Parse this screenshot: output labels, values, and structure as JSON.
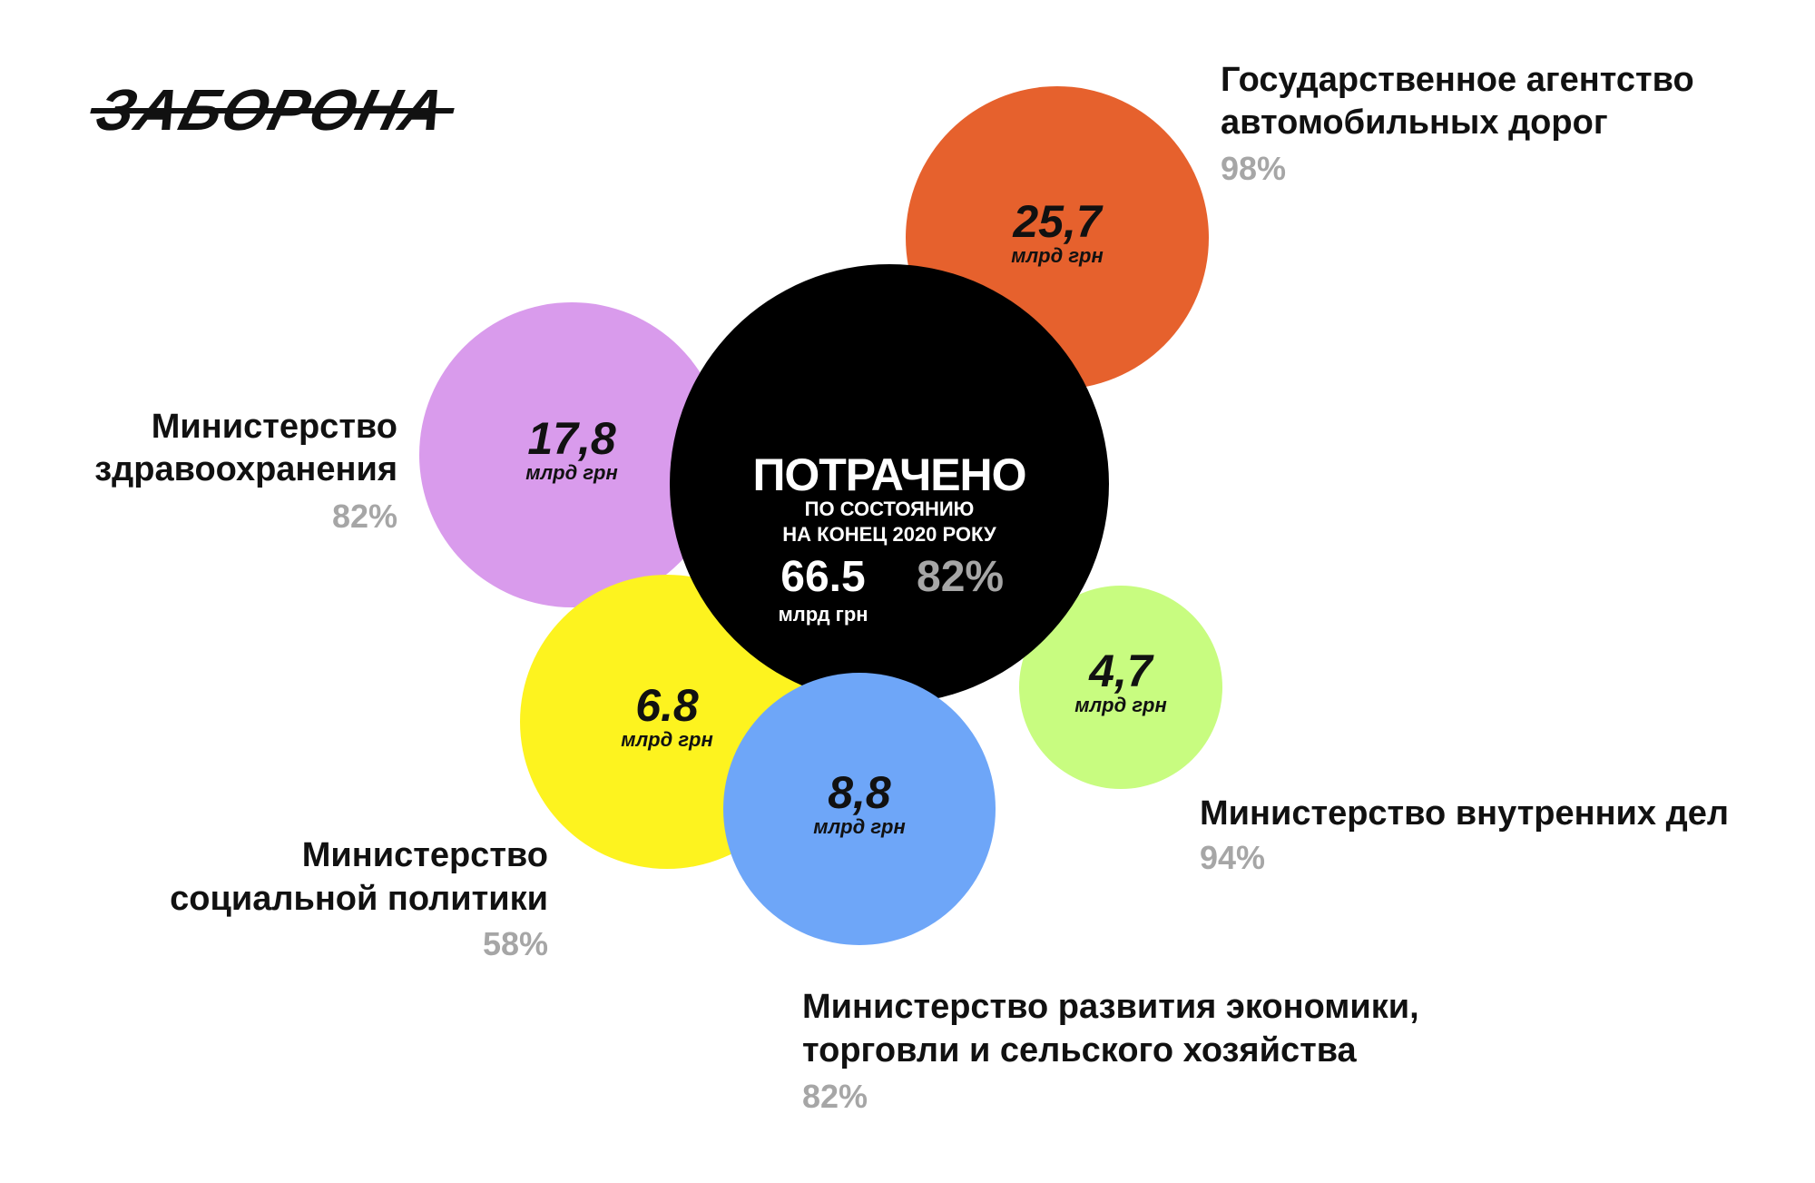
{
  "logo": {
    "text": "ЗАБОРОНА"
  },
  "center": {
    "title": "ПОТРАЧЕНО",
    "subtitle_line1": "ПО СОСТОЯНИЮ",
    "subtitle_line2": "НА КОНЕЦ 2020 РОКУ",
    "total": "66.5",
    "total_unit": "млрд грн",
    "percent": "82%",
    "color": "#000000"
  },
  "chart_data": {
    "type": "bubble",
    "unit": "млрд грн",
    "total": {
      "value": 66.5,
      "percent": 82
    },
    "series": [
      {
        "name_line1": "Государственное агентство",
        "name_line2": "автомобильных дорог",
        "value_label": "25,7",
        "value": 25.7,
        "percent_label": "98%",
        "percent": 98,
        "color": "#e6612d"
      },
      {
        "name_line1": "Министерство",
        "name_line2": "здравоохранения",
        "value_label": "17,8",
        "value": 17.8,
        "percent_label": "82%",
        "percent": 82,
        "color": "#d99bec"
      },
      {
        "name_line1": "Министерство",
        "name_line2": "социальной политики",
        "value_label": "6.8",
        "value": 6.8,
        "percent_label": "58%",
        "percent": 58,
        "color": "#fdf31f"
      },
      {
        "name_line1": "Министерство развития экономики,",
        "name_line2": "торговли и сельского хозяйства",
        "value_label": "8,8",
        "value": 8.8,
        "percent_label": "82%",
        "percent": 82,
        "color": "#6ea6f8"
      },
      {
        "name_line1": "Министерство внутренних дел",
        "name_line2": "",
        "value_label": "4,7",
        "value": 4.7,
        "percent_label": "94%",
        "percent": 94,
        "color": "#c8fc80"
      }
    ]
  }
}
